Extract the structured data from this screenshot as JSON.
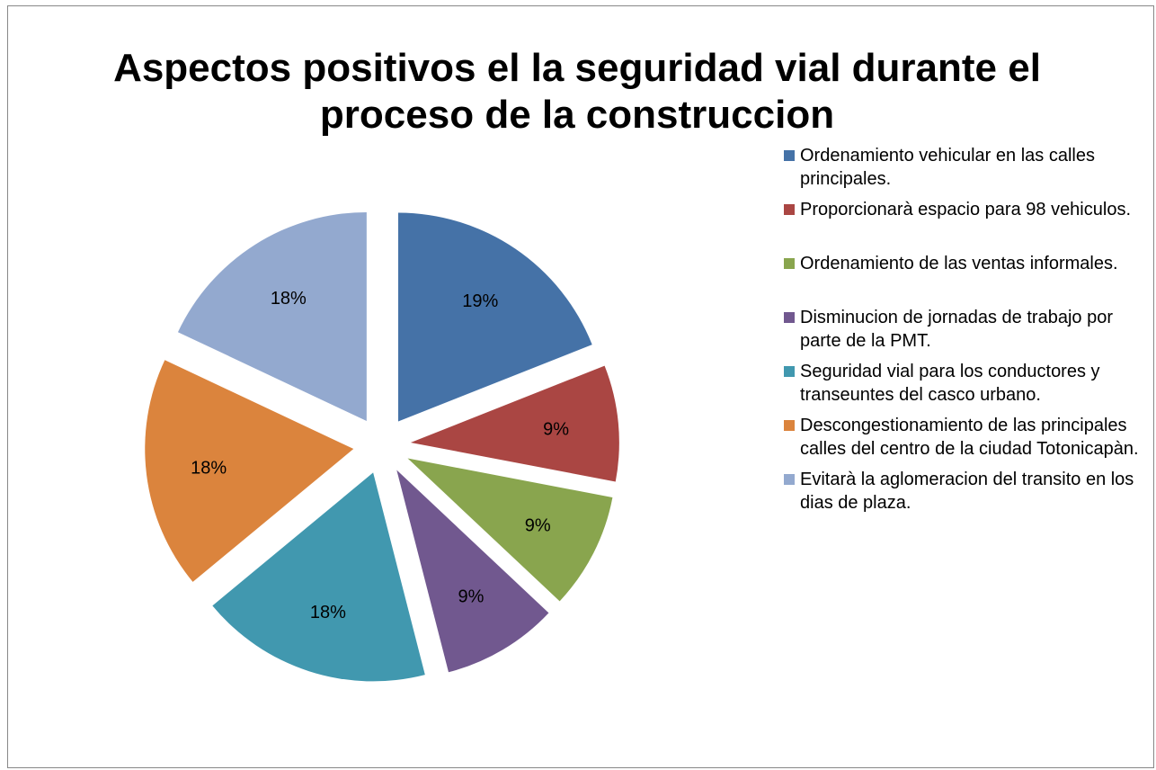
{
  "chart_data": {
    "type": "pie",
    "title": "Aspectos positivos el la seguridad vial durante el proceso de la construccion",
    "categories": [
      "Ordenamiento vehicular en las calles principales.",
      "Proporcionarà espacio para 98 vehiculos.",
      "Ordenamiento de las ventas informales.",
      "Disminucion de jornadas de trabajo por parte de la PMT.",
      "Seguridad vial para los conductores y transeuntes del casco urbano.",
      "Descongestionamiento de las principales calles del centro de la ciudad Totonicapàn.",
      "Evitarà la aglomeracion del transito en los dias de plaza."
    ],
    "values": [
      19,
      9,
      9,
      9,
      18,
      18,
      18
    ],
    "value_labels": [
      "19%",
      "9%",
      "9%",
      "9%",
      "18%",
      "18%",
      "18%"
    ],
    "colors": [
      "#4572a7",
      "#aa4643",
      "#89a54e",
      "#71588f",
      "#4198af",
      "#db843d",
      "#93a9cf"
    ],
    "legend": "right"
  }
}
